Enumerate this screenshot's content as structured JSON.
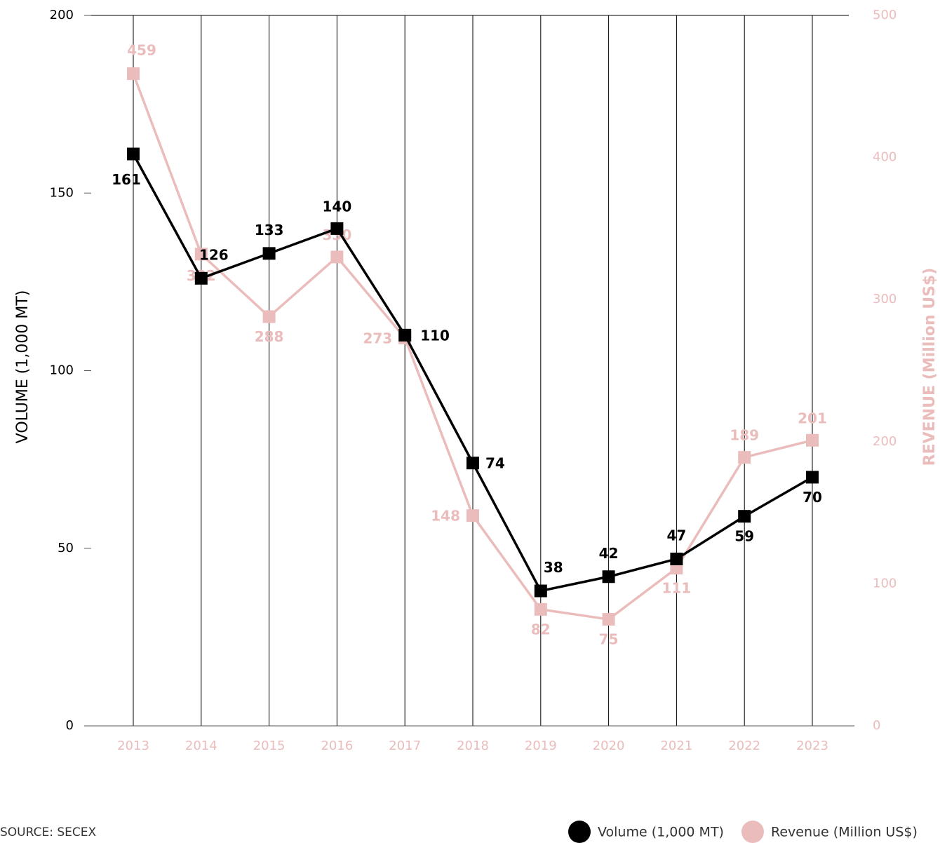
{
  "chart_data": {
    "type": "line",
    "categories": [
      "2013",
      "2014",
      "2015",
      "2016",
      "2017",
      "2018",
      "2019",
      "2020",
      "2021",
      "2022",
      "2023"
    ],
    "series": [
      {
        "name": "Volume (1,000 MT)",
        "color": "#000000",
        "values": [
          161,
          126,
          133,
          140,
          110,
          74,
          38,
          42,
          47,
          59,
          70
        ]
      },
      {
        "name": "Revenue (Million US$)",
        "color": "#ebbcbc",
        "axis": "y2",
        "values": [
          459,
          332,
          288,
          330,
          273,
          148,
          82,
          75,
          111,
          189,
          201
        ]
      }
    ],
    "ylim": [
      0,
      200
    ],
    "yticks": [
      0,
      50,
      100,
      150,
      200
    ],
    "y2lim": [
      0,
      500
    ],
    "y2ticks": [
      0,
      100,
      200,
      300,
      400,
      500
    ],
    "y_label": "VOLUME (1,000 MT)",
    "y2_label": "REVENUE (Million US$)",
    "source": "SOURCE: SECEX",
    "grid": true
  }
}
